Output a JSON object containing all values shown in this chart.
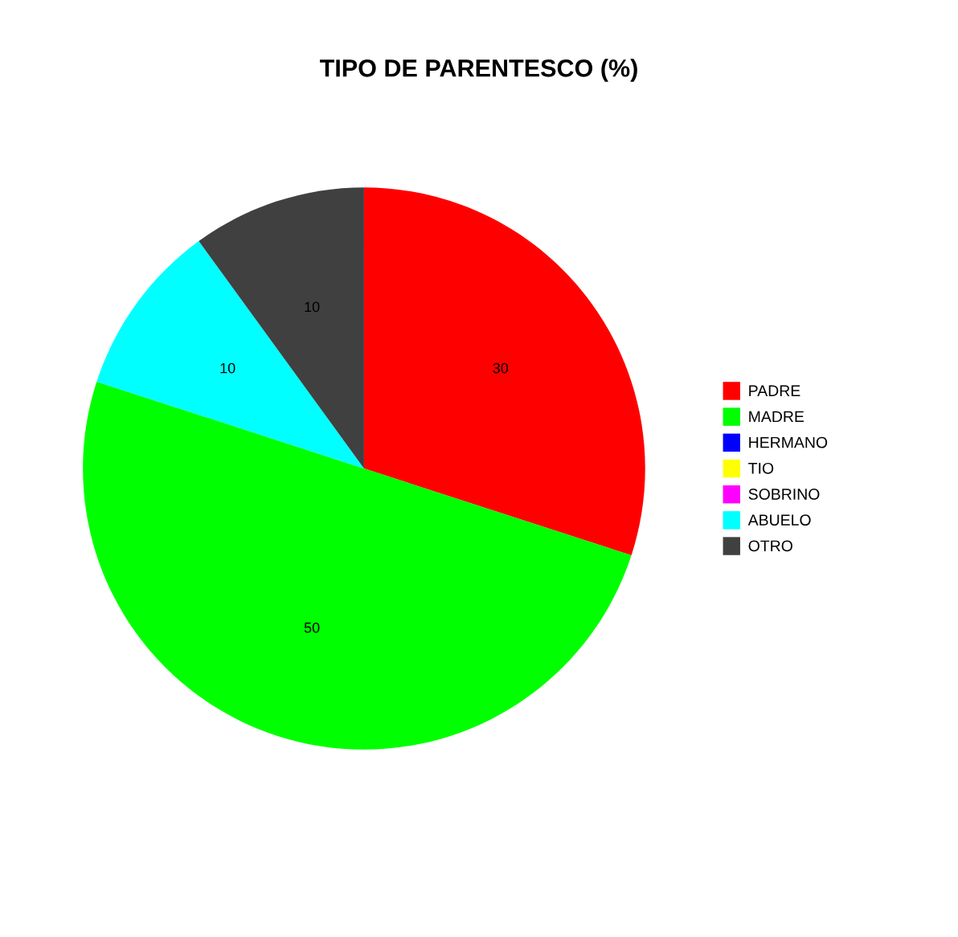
{
  "chart_data": {
    "type": "pie",
    "title": "TIPO DE PARENTESCO (%)",
    "categories": [
      "PADRE",
      "MADRE",
      "HERMANO",
      "TIO",
      "SOBRINO",
      "ABUELO",
      "OTRO"
    ],
    "values": [
      30,
      50,
      0,
      0,
      0,
      10,
      10
    ],
    "colors": [
      "#ff0000",
      "#00ff00",
      "#0000ff",
      "#ffff00",
      "#ff00ff",
      "#00ffff",
      "#404040"
    ],
    "value_labels": [
      "30",
      "50",
      null,
      null,
      null,
      "10",
      "10"
    ],
    "legend": "right"
  }
}
